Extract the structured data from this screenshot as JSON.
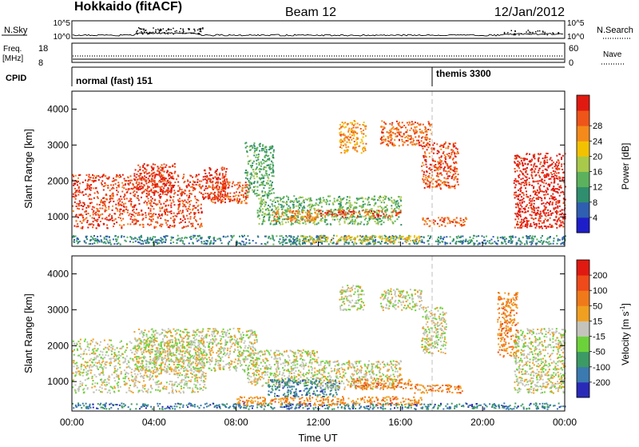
{
  "header": {
    "title": "Hokkaido (fitACF)",
    "beam": "Beam 12",
    "date": "12/Jan/2012"
  },
  "summary": {
    "nsky_label": "N.Sky",
    "nsearch_label": "N.Search",
    "freq_label": "Freq.",
    "freq_unit": "[MHz]",
    "nave_label": "Nave",
    "cpid_label": "CPID",
    "nsky_ticks": [
      "10^5",
      "10^0"
    ],
    "nsearch_ticks": [
      "10^5",
      "10^0"
    ],
    "freq_ticks": [
      "18",
      "8"
    ],
    "nave_ticks": [
      "60",
      "0"
    ],
    "cpid_segments": [
      {
        "label": "normal (fast) 151",
        "start_hour": 0
      },
      {
        "label": "themis 3300",
        "start_hour": 18
      }
    ]
  },
  "chart_data": [
    {
      "type": "heatmap",
      "panel": "power",
      "xlabel": "Time UT",
      "ylabel": "Slant Range [km]",
      "xlim": [
        0,
        24
      ],
      "ylim": [
        180,
        4500
      ],
      "yticks": [
        1000,
        2000,
        3000,
        4000
      ],
      "colorbar": {
        "label": "Power [dB]",
        "ticks": [
          "4",
          "8",
          "12",
          "16",
          "20",
          "24",
          "28"
        ],
        "colors": [
          "#1e1ec8",
          "#2f5fb0",
          "#2f8e6e",
          "#5cb25c",
          "#a8c94a",
          "#f2c200",
          "#f48a1a",
          "#ee5518",
          "#e01a10"
        ]
      },
      "regions": [
        {
          "t0": 0.0,
          "t1": 6.3,
          "r0": 700,
          "r1": 2200,
          "level": 0.88
        },
        {
          "t0": 3.0,
          "t1": 5.0,
          "r0": 1700,
          "r1": 2500,
          "level": 0.9
        },
        {
          "t0": 6.3,
          "t1": 7.6,
          "r0": 1500,
          "r1": 2400,
          "level": 0.92
        },
        {
          "t0": 6.5,
          "t1": 8.6,
          "r0": 1400,
          "r1": 2000,
          "level": 0.85
        },
        {
          "t0": 8.4,
          "t1": 9.8,
          "r0": 1600,
          "r1": 3100,
          "level": 0.35
        },
        {
          "t0": 9.0,
          "t1": 16.0,
          "r0": 800,
          "r1": 1600,
          "level": 0.4
        },
        {
          "t0": 9.7,
          "t1": 12.0,
          "r0": 900,
          "r1": 1200,
          "level": 0.75
        },
        {
          "t0": 12.0,
          "t1": 16.0,
          "r0": 1000,
          "r1": 1200,
          "level": 0.85
        },
        {
          "t0": 13.0,
          "t1": 14.3,
          "r0": 2800,
          "r1": 3700,
          "level": 0.7
        },
        {
          "t0": 15.0,
          "t1": 17.5,
          "r0": 3000,
          "r1": 3700,
          "level": 0.8
        },
        {
          "t0": 17.0,
          "t1": 18.8,
          "r0": 1800,
          "r1": 3100,
          "level": 0.85
        },
        {
          "t0": 17.0,
          "t1": 19.2,
          "r0": 750,
          "r1": 1000,
          "level": 0.8
        },
        {
          "t0": 21.5,
          "t1": 24.0,
          "r0": 700,
          "r1": 2800,
          "level": 0.95
        },
        {
          "t0": 0.0,
          "t1": 24.0,
          "r0": 250,
          "r1": 500,
          "level": 0.25
        },
        {
          "t0": 11.0,
          "t1": 17.0,
          "r0": 300,
          "r1": 500,
          "level": 0.6
        }
      ]
    },
    {
      "type": "heatmap",
      "panel": "velocity",
      "xlabel": "Time UT",
      "ylabel": "Slant Range [km]",
      "xlim": [
        0,
        24
      ],
      "ylim": [
        180,
        4500
      ],
      "xticks": [
        "00:00",
        "04:00",
        "08:00",
        "12:00",
        "16:00",
        "20:00",
        "00:00"
      ],
      "yticks": [
        1000,
        2000,
        3000,
        4000
      ],
      "colorbar": {
        "label": "Velocity [m s^-1]",
        "ticks": [
          "200",
          "100",
          "50",
          "15",
          "-15",
          "-50",
          "-100",
          "-200"
        ],
        "colors": [
          "#2a2ab8",
          "#3a7ab0",
          "#3c9a64",
          "#6cd23a",
          "#c4c4bc",
          "#f0a020",
          "#f07a1a",
          "#ee4a1a",
          "#e01a10"
        ]
      },
      "regions": [
        {
          "t0": 0.0,
          "t1": 6.5,
          "r0": 700,
          "r1": 2200,
          "level": 0.5
        },
        {
          "t0": 3.0,
          "t1": 9.0,
          "r0": 1300,
          "r1": 2500,
          "level": 0.5
        },
        {
          "t0": 8.5,
          "t1": 12.0,
          "r0": 900,
          "r1": 1900,
          "level": 0.5
        },
        {
          "t0": 9.5,
          "t1": 13.0,
          "r0": 600,
          "r1": 1100,
          "level": 0.2
        },
        {
          "t0": 12.0,
          "t1": 16.0,
          "r0": 800,
          "r1": 1600,
          "level": 0.5
        },
        {
          "t0": 13.5,
          "t1": 16.5,
          "r0": 800,
          "r1": 1100,
          "level": 0.7
        },
        {
          "t0": 16.5,
          "t1": 19.0,
          "r0": 700,
          "r1": 950,
          "level": 0.7
        },
        {
          "t0": 13.0,
          "t1": 14.2,
          "r0": 3000,
          "r1": 3700,
          "level": 0.5
        },
        {
          "t0": 15.0,
          "t1": 17.0,
          "r0": 3000,
          "r1": 3600,
          "level": 0.5
        },
        {
          "t0": 17.0,
          "t1": 18.2,
          "r0": 1800,
          "r1": 3100,
          "level": 0.5
        },
        {
          "t0": 20.7,
          "t1": 21.7,
          "r0": 1700,
          "r1": 3500,
          "level": 0.7
        },
        {
          "t0": 21.5,
          "t1": 24.0,
          "r0": 700,
          "r1": 2500,
          "level": 0.5
        },
        {
          "t0": 0.0,
          "t1": 24.0,
          "r0": 250,
          "r1": 420,
          "level": 0.2
        },
        {
          "t0": 8.0,
          "t1": 17.0,
          "r0": 350,
          "r1": 600,
          "level": 0.68
        }
      ]
    }
  ]
}
